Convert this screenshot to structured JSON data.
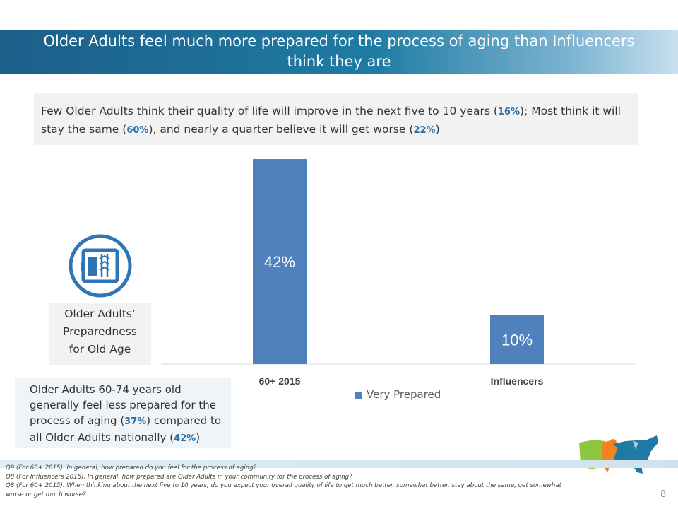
{
  "header": {
    "title": "Older Adults feel much more prepared for the process of aging than Influencers think they are"
  },
  "callout": {
    "part1": "Few Older Adults think their quality of life will improve in the next five to 10 years (",
    "pct1": "16%",
    "part2": "); Most think it will stay the same (",
    "pct2": "60%",
    "part3": "), and nearly a quarter believe it will get worse (",
    "pct3": "22%",
    "part4": ")"
  },
  "side_label": {
    "line1": "Older Adults’",
    "line2": "Preparedness",
    "line3": "for Old Age"
  },
  "note": {
    "part1": "Older Adults 60-74 years old generally feel less prepared for the process of aging (",
    "pct1": "37%",
    "part2": ") compared to all Older Adults nationally (",
    "pct2": "42%",
    "part3": ")"
  },
  "chart_data": {
    "type": "bar",
    "categories": [
      "60+ 2015",
      "Influencers"
    ],
    "series": [
      {
        "name": "Very Prepared",
        "values": [
          42,
          10
        ],
        "labels": [
          "42%",
          "10%"
        ],
        "color": "#4f81bd"
      }
    ],
    "ylim": [
      0,
      42
    ],
    "grid": false,
    "legend": "bottom"
  },
  "footnotes": {
    "line1": "Q9 (For 60+ 2015). In general, how prepared do you feel for the process of aging?",
    "line2": "Q8 (For Influencers 2015). In general, how prepared are Older Adults in your community for the process of aging?",
    "line3": "Q8 (For 60+ 2015). When thinking about the next five to 10 years, do you expect your overall quality of life to get much better, somewhat better, stay about the same, get somewhat worse or get much worse?"
  },
  "page": {
    "number": "8"
  },
  "icons": {
    "preparedness": "calendar-book-icon",
    "logo": "us-map-logo-icon"
  }
}
